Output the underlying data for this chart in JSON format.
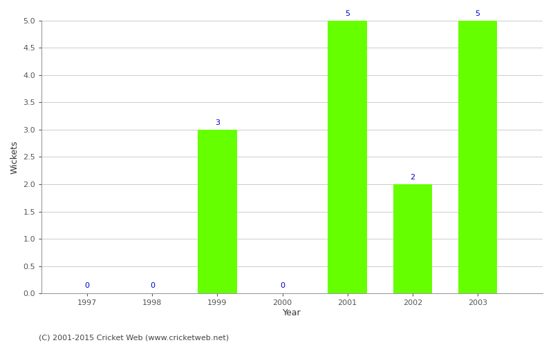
{
  "years": [
    1997,
    1998,
    1999,
    2000,
    2001,
    2002,
    2003
  ],
  "wickets": [
    0,
    0,
    3,
    0,
    5,
    2,
    5
  ],
  "bar_color": "#66ff00",
  "bar_edge_color": "#66ff00",
  "ylabel": "Wickets",
  "xlabel": "Year",
  "ylim": [
    0,
    5.0
  ],
  "yticks": [
    0.0,
    0.5,
    1.0,
    1.5,
    2.0,
    2.5,
    3.0,
    3.5,
    4.0,
    4.5,
    5.0
  ],
  "annotation_color": "#0000cc",
  "annotation_fontsize": 8,
  "grid_color": "#cccccc",
  "axis_color": "#999999",
  "background_color": "#ffffff",
  "footer_text": "(C) 2001-2015 Cricket Web (www.cricketweb.net)",
  "footer_fontsize": 8,
  "footer_color": "#444444",
  "bar_width": 0.6,
  "xlim_left": 1996.3,
  "xlim_right": 2004.0
}
